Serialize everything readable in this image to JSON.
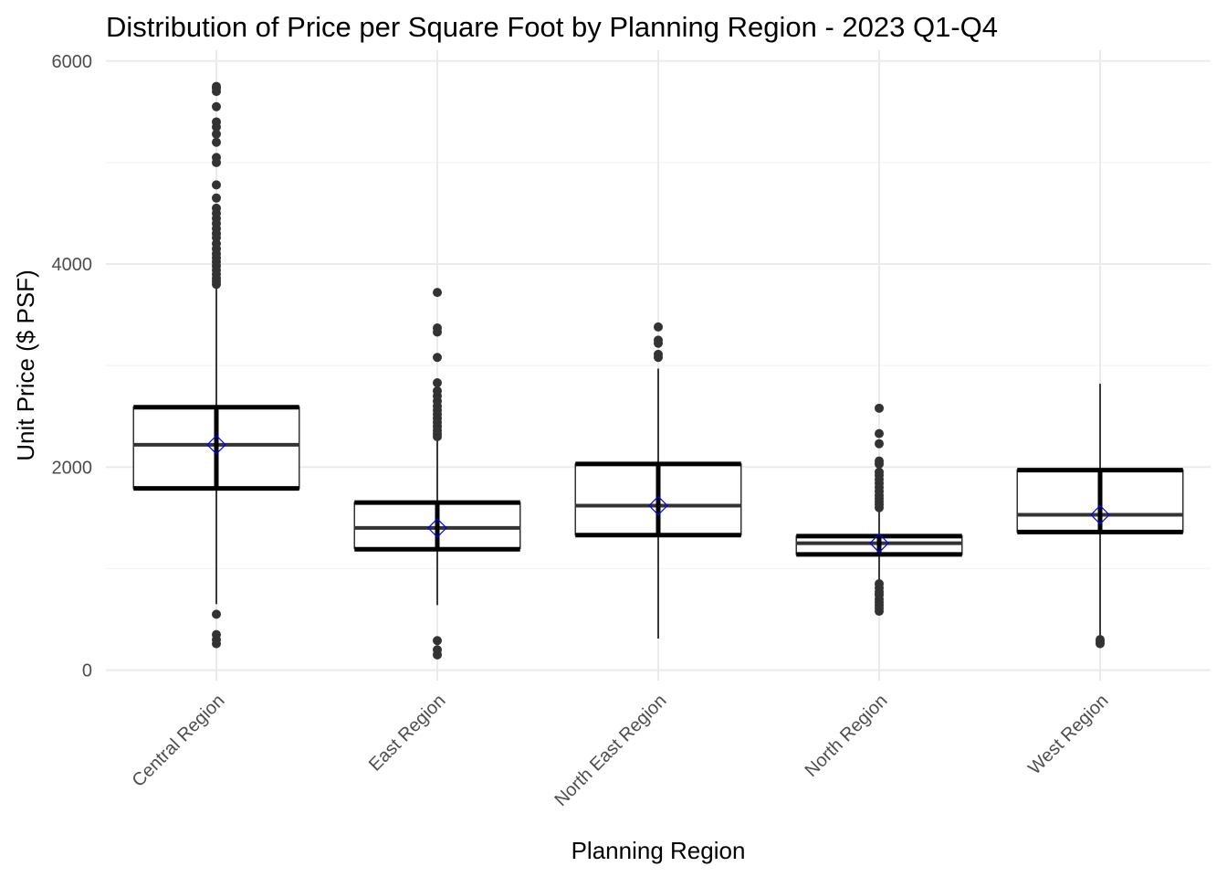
{
  "chart_data": {
    "type": "box",
    "title": "Distribution of Price per Square Foot by Planning Region - 2023 Q1-Q4",
    "xlabel": "Planning Region",
    "ylabel": "Unit Price ($ PSF)",
    "ylim": [
      -150,
      6050
    ],
    "yticks": [
      0,
      2000,
      4000,
      6000
    ],
    "grid": true,
    "categories": [
      "Central Region",
      "East Region",
      "North East Region",
      "North Region",
      "West Region"
    ],
    "boxes": [
      {
        "category": "Central Region",
        "whisker_low": 650,
        "q1": 1790,
        "median": 2220,
        "q3": 2590,
        "whisker_high": 3780,
        "mean": 2220,
        "mean_minus_sd": 1790,
        "mean_plus_sd": 2590,
        "outliers": [
          260,
          300,
          350,
          550,
          3800,
          3830,
          3860,
          3900,
          3940,
          3980,
          4020,
          4060,
          4100,
          4150,
          4200,
          4260,
          4300,
          4350,
          4400,
          4450,
          4500,
          4550,
          4650,
          4780,
          5000,
          5050,
          5200,
          5280,
          5350,
          5400,
          5550,
          5700,
          5730,
          5750
        ]
      },
      {
        "category": "East Region",
        "whisker_low": 640,
        "q1": 1200,
        "median": 1400,
        "q3": 1650,
        "whisker_high": 2270,
        "mean": 1400,
        "mean_minus_sd": 1190,
        "mean_plus_sd": 1650,
        "outliers": [
          150,
          200,
          290,
          2300,
          2330,
          2360,
          2400,
          2440,
          2480,
          2520,
          2560,
          2600,
          2650,
          2700,
          2750,
          2830,
          3080,
          3330,
          3370,
          3720
        ]
      },
      {
        "category": "North East Region",
        "whisker_low": 310,
        "q1": 1330,
        "median": 1620,
        "q3": 2030,
        "whisker_high": 2970,
        "mean": 1620,
        "mean_minus_sd": 1330,
        "mean_plus_sd": 2030,
        "outliers": [
          3080,
          3110,
          3220,
          3250,
          3380
        ]
      },
      {
        "category": "North Region",
        "whisker_low": 880,
        "q1": 1140,
        "median": 1250,
        "q3": 1320,
        "whisker_high": 1580,
        "mean": 1250,
        "mean_minus_sd": 1140,
        "mean_plus_sd": 1320,
        "outliers": [
          580,
          610,
          640,
          670,
          700,
          740,
          770,
          810,
          850,
          1600,
          1630,
          1660,
          1690,
          1720,
          1760,
          1800,
          1840,
          1880,
          1920,
          1950,
          2030,
          2060,
          2230,
          2330,
          2580
        ]
      },
      {
        "category": "West Region",
        "whisker_low": 330,
        "q1": 1360,
        "median": 1530,
        "q3": 1970,
        "whisker_high": 2820,
        "mean": 1530,
        "mean_minus_sd": 1360,
        "mean_plus_sd": 1970,
        "outliers": [
          260,
          280,
          300
        ]
      }
    ],
    "colors": {
      "box_stroke": "#333333",
      "median": "#333333",
      "whisker": "#000000",
      "sd_bar": "#000000",
      "outlier": "#333333",
      "mean_marker": "#0000ff"
    }
  }
}
